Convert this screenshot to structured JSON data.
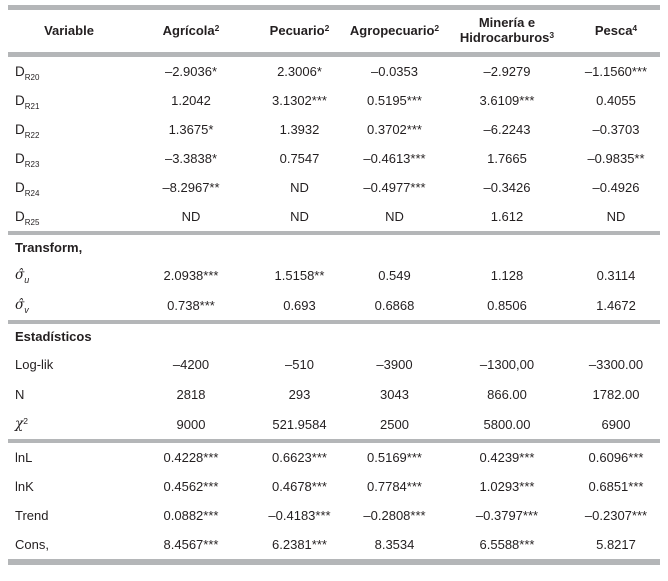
{
  "table": {
    "header": {
      "variable_label": "Variable",
      "agricola": {
        "text": "Agrícola",
        "sup": "2"
      },
      "pecuario": {
        "text": "Pecuario",
        "sup": "2"
      },
      "agropecuario": {
        "text": "Agropecuario",
        "sup": "2"
      },
      "mineria": {
        "line1": "Minería e",
        "line2": "Hidrocarburos",
        "sup": "3"
      },
      "pesca": {
        "text": "Pesca",
        "sup": "4"
      }
    },
    "sections": [
      {
        "rows": [
          {
            "label": {
              "base": "D",
              "sub": "R20"
            },
            "cells": [
              "–2.9036*",
              "2.3006*",
              "–0.0353",
              "–2.9279",
              "–1.1560***"
            ]
          },
          {
            "label": {
              "base": "D",
              "sub": "R21"
            },
            "cells": [
              "1.2042",
              "3.1302***",
              "0.5195***",
              "3.6109***",
              "0.4055"
            ]
          },
          {
            "label": {
              "base": "D",
              "sub": "R22"
            },
            "cells": [
              "1.3675*",
              "1.3932",
              "0.3702***",
              "–6.2243",
              "–0.3703"
            ]
          },
          {
            "label": {
              "base": "D",
              "sub": "R23"
            },
            "cells": [
              "–3.3838*",
              "0.7547",
              "–0.4613***",
              "1.7665",
              "–0.9835**"
            ]
          },
          {
            "label": {
              "base": "D",
              "sub": "R24"
            },
            "cells": [
              "–8.2967**",
              "ND",
              "–0.4977***",
              "–0.3426",
              "–0.4926"
            ]
          },
          {
            "label": {
              "base": "D",
              "sub": "R25"
            },
            "cells": [
              "ND",
              "ND",
              "ND",
              "1.612",
              "ND"
            ]
          }
        ]
      },
      {
        "heading": "Transform,",
        "rows": [
          {
            "label": {
              "base": "σ̂",
              "sub": "u"
            },
            "cells": [
              "2.0938***",
              "1.5158**",
              "0.549",
              "1.128",
              "0.3114"
            ]
          },
          {
            "label": {
              "base": "σ̂",
              "sub": "v"
            },
            "cells": [
              "0.738***",
              "0.693",
              "0.6868",
              "0.8506",
              "1.4672"
            ]
          }
        ]
      },
      {
        "heading": "Estadísticos",
        "rows": [
          {
            "label": {
              "base": "Log-lik"
            },
            "cells": [
              "–4200",
              "–510",
              "–3900",
              "–1300,00",
              "–3300.00"
            ]
          },
          {
            "label": {
              "base": "N"
            },
            "cells": [
              "2818",
              "293",
              "3043",
              "866.00",
              "1782.00"
            ]
          },
          {
            "label": {
              "base": "χ",
              "sup": "2"
            },
            "cells": [
              "9000",
              "521.9584",
              "2500",
              "5800.00",
              "6900"
            ]
          }
        ]
      },
      {
        "rows": [
          {
            "label": {
              "base": "lnL"
            },
            "cells": [
              "0.4228***",
              "0.6623***",
              "0.5169***",
              "0.4239***",
              "0.6096***"
            ]
          },
          {
            "label": {
              "base": "lnK"
            },
            "cells": [
              "0.4562***",
              "0.4678***",
              "0.7784***",
              "1.0293***",
              "0.6851***"
            ]
          },
          {
            "label": {
              "base": "Trend"
            },
            "cells": [
              "0.0882***",
              "–0.4183***",
              "–0.2808***",
              "–0.3797***",
              "–0.2307***"
            ]
          },
          {
            "label": {
              "base": "Cons,"
            },
            "cells": [
              "8.4567***",
              "6.2381***",
              "8.3534",
              "6.5588***",
              "5.8217"
            ]
          }
        ]
      }
    ]
  },
  "colors": {
    "rule_gray": "#b4b6b8",
    "text": "#231f20"
  }
}
